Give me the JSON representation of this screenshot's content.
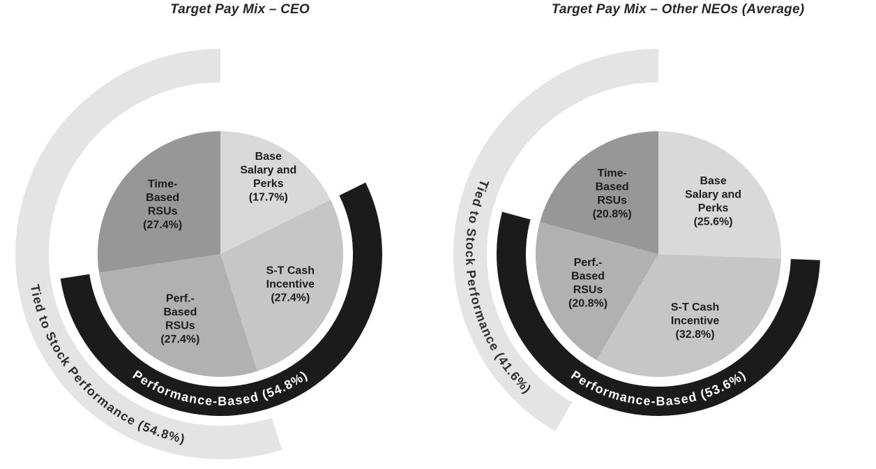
{
  "figure": {
    "background": "#ffffff"
  },
  "chart_data": [
    {
      "type": "pie",
      "title": "Target Pay Mix – CEO",
      "legend_position": "none",
      "slices": [
        {
          "id": "base-salary-and-perks",
          "label": "Base Salary and Perks",
          "value": 17.7,
          "display_lines": [
            "Base",
            "Salary and",
            "Perks",
            "(17.7%)"
          ],
          "color": "#d9d9d9"
        },
        {
          "id": "st-cash-incentive",
          "label": "S-T Cash Incentive",
          "value": 27.4,
          "display_lines": [
            "S-T Cash",
            "Incentive",
            "(27.4%)"
          ],
          "color": "#c6c6c6"
        },
        {
          "id": "perf-based-rsus",
          "label": "Perf.-Based RSUs",
          "value": 27.4,
          "display_lines": [
            "Perf.-",
            "Based",
            "RSUs",
            "(27.4%)"
          ],
          "color": "#b1b1b1"
        },
        {
          "id": "time-based-rsus",
          "label": "Time-Based RSUs",
          "value": 27.4,
          "display_lines": [
            "Time-",
            "Based",
            "RSUs",
            "(27.4%)"
          ],
          "color": "#979797"
        }
      ],
      "rings": [
        {
          "id": "performance-based",
          "label": "Performance-Based (54.8%)",
          "value": 54.8,
          "start_pct": 17.7,
          "end_pct": 72.5,
          "color": "#1b1b1b",
          "text_color": "#ffffff"
        },
        {
          "id": "tied-to-stock-performance",
          "label": "Tied to Stock Performance (54.8%)",
          "value": 54.8,
          "start_pct": 45.1,
          "end_pct": 99.9,
          "color": "#e4e4e4",
          "text_color": "#2d2d2d"
        }
      ]
    },
    {
      "type": "pie",
      "title": "Target Pay Mix – Other NEOs (Average)",
      "legend_position": "none",
      "slices": [
        {
          "id": "base-salary-and-perks",
          "label": "Base Salary and Perks",
          "value": 25.6,
          "display_lines": [
            "Base",
            "Salary and",
            "Perks",
            "(25.6%)"
          ],
          "color": "#d9d9d9"
        },
        {
          "id": "st-cash-incentive",
          "label": "S-T Cash Incentive",
          "value": 32.8,
          "display_lines": [
            "S-T Cash",
            "Incentive",
            "(32.8%)"
          ],
          "color": "#c6c6c6"
        },
        {
          "id": "perf-based-rsus",
          "label": "Perf.-Based RSUs",
          "value": 20.8,
          "display_lines": [
            "Perf.-",
            "Based",
            "RSUs",
            "(20.8%)"
          ],
          "color": "#b1b1b1"
        },
        {
          "id": "time-based-rsus",
          "label": "Time-Based RSUs",
          "value": 20.8,
          "display_lines": [
            "Time-",
            "Based",
            "RSUs",
            "(20.8%)"
          ],
          "color": "#979797"
        }
      ],
      "rings": [
        {
          "id": "performance-based",
          "label": "Performance-Based (53.6%)",
          "value": 53.6,
          "start_pct": 25.6,
          "end_pct": 79.2,
          "color": "#1b1b1b",
          "text_color": "#ffffff"
        },
        {
          "id": "tied-to-stock-performance",
          "label": "Tied to Stock Performance (41.6%)",
          "value": 41.6,
          "start_pct": 58.4,
          "end_pct": 100,
          "color": "#e4e4e4",
          "text_color": "#2d2d2d"
        }
      ]
    }
  ]
}
